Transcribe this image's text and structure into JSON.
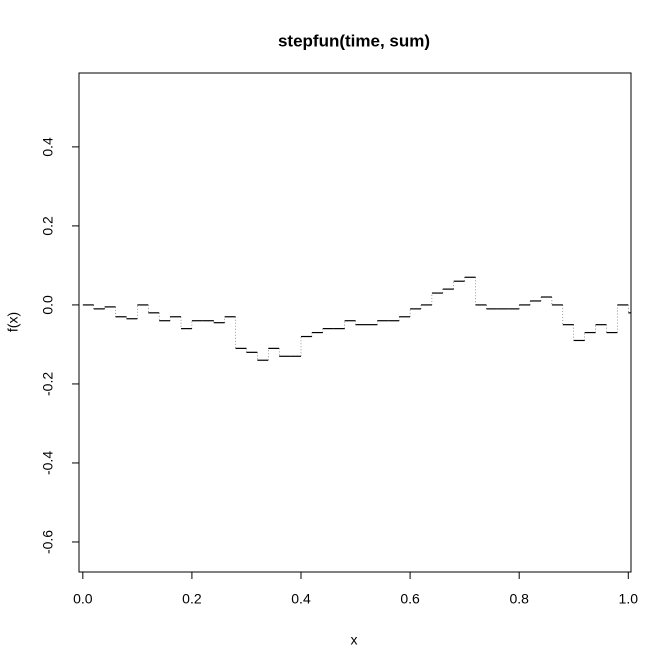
{
  "chart_data": {
    "type": "step",
    "title": "stepfun(time, sum)",
    "x_label": "x",
    "y_label": "f(x)",
    "x": [
      0,
      0.02,
      0.04,
      0.06,
      0.08,
      0.1,
      0.12,
      0.14,
      0.16,
      0.18,
      0.2,
      0.22,
      0.24,
      0.26,
      0.28,
      0.3,
      0.32,
      0.34,
      0.36,
      0.38,
      0.4,
      0.42,
      0.44,
      0.46,
      0.48,
      0.5,
      0.52,
      0.54,
      0.56,
      0.58,
      0.6,
      0.62,
      0.64,
      0.66,
      0.68,
      0.7,
      0.72,
      0.74,
      0.76,
      0.78,
      0.8,
      0.82,
      0.84,
      0.86,
      0.88,
      0.9,
      0.92,
      0.94,
      0.96,
      0.98,
      1.0
    ],
    "values": [
      0,
      -0.01,
      -0.005,
      -0.03,
      -0.035,
      0.0,
      -0.02,
      -0.04,
      -0.03,
      -0.06,
      -0.04,
      -0.04,
      -0.045,
      -0.03,
      -0.11,
      -0.12,
      -0.14,
      -0.11,
      -0.13,
      -0.13,
      -0.08,
      -0.07,
      -0.06,
      -0.06,
      -0.04,
      -0.05,
      -0.05,
      -0.04,
      -0.04,
      -0.03,
      -0.01,
      0.0,
      0.03,
      0.04,
      0.06,
      0.07,
      0.0,
      -0.01,
      -0.01,
      -0.01,
      0.0,
      0.01,
      0.02,
      0.0,
      -0.05,
      -0.09,
      -0.07,
      -0.05,
      -0.07,
      0.0,
      -0.02
    ],
    "color": "#000000",
    "xlim": [
      -0.007,
      1.005
    ],
    "ylim": [
      -0.676,
      0.587
    ],
    "xticks": [
      {
        "value": 0,
        "label": "0.0"
      },
      0.2,
      0.4,
      0.6,
      0.8,
      {
        "value": 1,
        "label": "1.0"
      }
    ],
    "yticks": [
      -0.6,
      -0.4,
      -0.2,
      {
        "value": 0,
        "label": "0.0"
      },
      0.2,
      0.4
    ]
  }
}
